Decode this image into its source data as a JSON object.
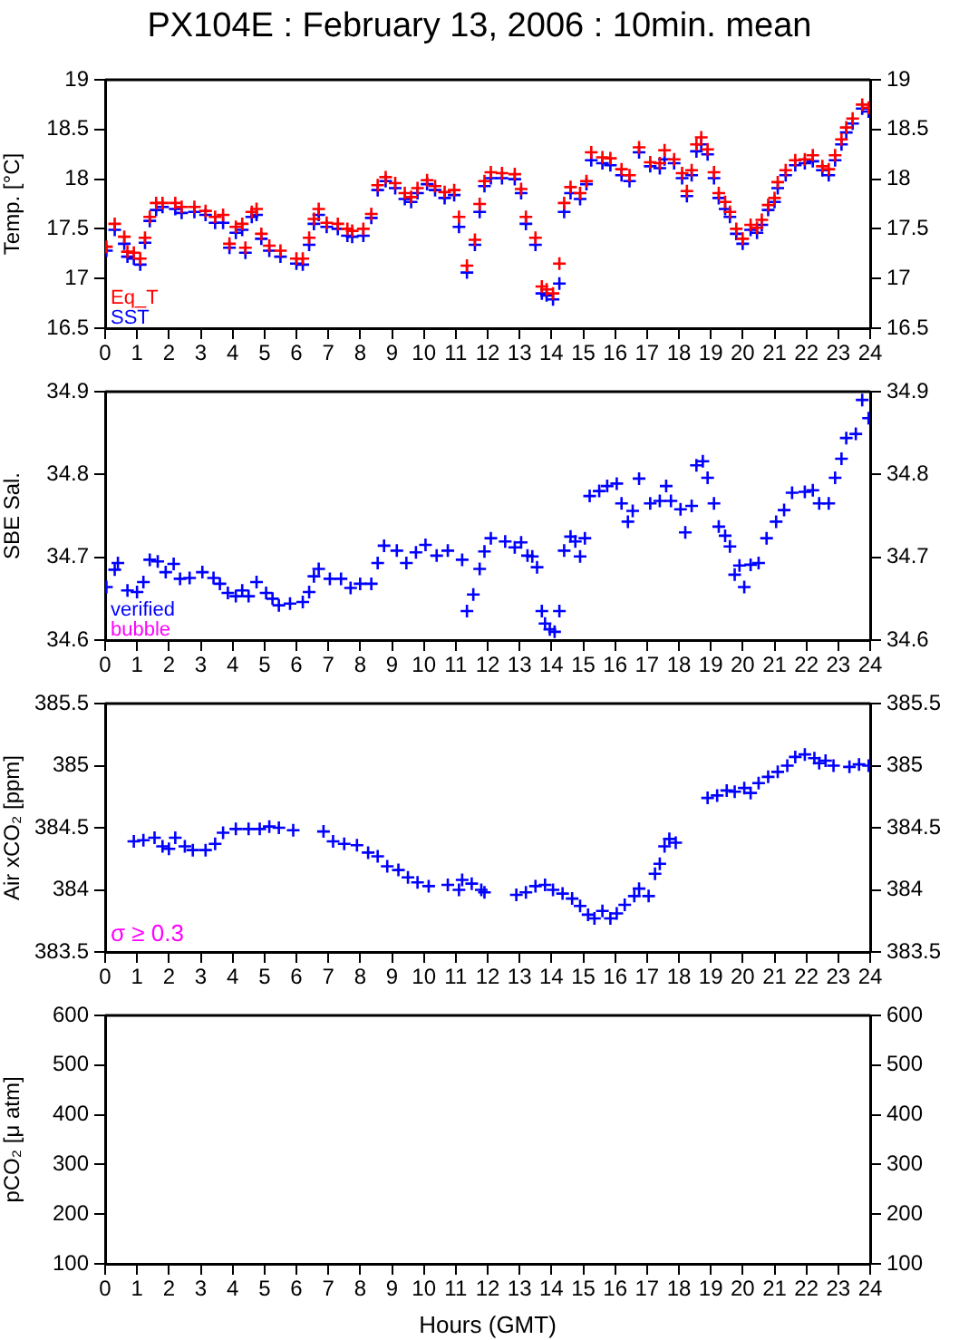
{
  "chart_data": [
    {
      "type": "scatter",
      "title": "PX104E : February 13, 2006 : 10min. mean",
      "ylabel": "Temp. [°C]",
      "marker": "cross",
      "legend": "bottom left",
      "grid": false,
      "xlim": [
        0,
        24
      ],
      "xticks": [
        0,
        1,
        2,
        3,
        4,
        5,
        6,
        7,
        8,
        9,
        10,
        11,
        12,
        13,
        14,
        15,
        16,
        17,
        18,
        19,
        20,
        21,
        22,
        23,
        24
      ],
      "ylim": [
        16.5,
        19
      ],
      "yticks": [
        16.5,
        17,
        17.5,
        18,
        18.5,
        19
      ],
      "y2lim": [
        16.5,
        19
      ],
      "y2ticks": [
        16.5,
        17,
        17.5,
        18,
        18.5,
        19
      ],
      "series": [
        {
          "name": "Eq_T",
          "color": "#ff0000",
          "x": [
            0.04,
            0.3,
            0.6,
            0.7,
            0.9,
            1.1,
            1.25,
            1.4,
            1.6,
            1.8,
            2.2,
            2.4,
            2.8,
            3.15,
            3.45,
            3.7,
            3.9,
            4.1,
            4.3,
            4.4,
            4.6,
            4.75,
            4.9,
            5.15,
            5.5,
            6.0,
            6.2,
            6.4,
            6.55,
            6.7,
            6.95,
            7.3,
            7.6,
            7.75,
            8.1,
            8.35,
            8.55,
            8.8,
            9.1,
            9.4,
            9.6,
            9.8,
            10.1,
            10.35,
            10.65,
            10.95,
            11.1,
            11.35,
            11.6,
            11.75,
            11.9,
            12.1,
            12.45,
            12.85,
            13.05,
            13.2,
            13.5,
            13.7,
            13.85,
            14.05,
            14.25,
            14.4,
            14.6,
            14.9,
            15.1,
            15.25,
            15.6,
            15.85,
            16.2,
            16.45,
            16.75,
            17.1,
            17.4,
            17.55,
            17.85,
            18.1,
            18.25,
            18.4,
            18.55,
            18.7,
            18.9,
            19.1,
            19.25,
            19.45,
            19.6,
            19.8,
            20.0,
            20.25,
            20.45,
            20.6,
            20.8,
            21.0,
            21.1,
            21.35,
            21.65,
            21.95,
            22.2,
            22.5,
            22.7,
            22.9,
            23.1,
            23.25,
            23.45,
            23.75,
            23.95
          ],
          "values": [
            17.32,
            17.55,
            17.42,
            17.27,
            17.26,
            17.2,
            17.41,
            17.62,
            17.76,
            17.76,
            17.76,
            17.72,
            17.72,
            17.68,
            17.62,
            17.64,
            17.35,
            17.52,
            17.55,
            17.31,
            17.67,
            17.7,
            17.45,
            17.33,
            17.28,
            17.2,
            17.2,
            17.41,
            17.6,
            17.7,
            17.56,
            17.55,
            17.5,
            17.48,
            17.5,
            17.65,
            17.94,
            18.02,
            17.96,
            17.86,
            17.82,
            17.91,
            17.99,
            17.93,
            17.87,
            17.89,
            17.62,
            17.13,
            17.39,
            17.75,
            17.98,
            18.07,
            18.06,
            18.05,
            17.9,
            17.62,
            17.41,
            16.92,
            16.89,
            16.85,
            17.15,
            17.76,
            17.92,
            17.86,
            17.98,
            18.27,
            18.22,
            18.21,
            18.1,
            18.04,
            18.32,
            18.17,
            18.16,
            18.29,
            18.2,
            18.06,
            17.88,
            18.09,
            18.35,
            18.42,
            18.3,
            18.07,
            17.86,
            17.77,
            17.67,
            17.5,
            17.4,
            17.54,
            17.51,
            17.59,
            17.74,
            17.81,
            17.97,
            18.09,
            18.19,
            18.2,
            18.24,
            18.13,
            18.1,
            18.24,
            18.4,
            18.52,
            18.61,
            18.75,
            18.72
          ]
        },
        {
          "name": "SST",
          "color": "#0000ff",
          "x": [
            0.04,
            0.3,
            0.6,
            0.7,
            0.9,
            1.1,
            1.25,
            1.4,
            1.6,
            1.8,
            2.2,
            2.4,
            2.8,
            3.15,
            3.45,
            3.7,
            3.9,
            4.1,
            4.3,
            4.4,
            4.6,
            4.75,
            4.9,
            5.15,
            5.5,
            6.0,
            6.2,
            6.4,
            6.55,
            6.7,
            6.95,
            7.3,
            7.6,
            7.75,
            8.1,
            8.35,
            8.55,
            8.8,
            9.1,
            9.4,
            9.6,
            9.8,
            10.1,
            10.35,
            10.65,
            10.95,
            11.1,
            11.35,
            11.6,
            11.75,
            11.9,
            12.1,
            12.45,
            12.85,
            13.05,
            13.2,
            13.5,
            13.7,
            13.85,
            14.05,
            14.25,
            14.4,
            14.6,
            14.9,
            15.1,
            15.25,
            15.6,
            15.85,
            16.2,
            16.45,
            16.75,
            17.1,
            17.4,
            17.55,
            17.85,
            18.1,
            18.25,
            18.4,
            18.55,
            18.7,
            18.9,
            19.1,
            19.25,
            19.45,
            19.6,
            19.8,
            20.0,
            20.25,
            20.45,
            20.6,
            20.8,
            21.0,
            21.1,
            21.35,
            21.65,
            21.95,
            22.2,
            22.5,
            22.7,
            22.9,
            23.1,
            23.25,
            23.45,
            23.75,
            23.95
          ],
          "values": [
            17.28,
            17.49,
            17.35,
            17.22,
            17.2,
            17.14,
            17.36,
            17.58,
            17.69,
            17.72,
            17.7,
            17.66,
            17.67,
            17.64,
            17.56,
            17.56,
            17.31,
            17.46,
            17.49,
            17.26,
            17.62,
            17.64,
            17.4,
            17.28,
            17.22,
            17.15,
            17.14,
            17.34,
            17.55,
            17.64,
            17.52,
            17.5,
            17.43,
            17.42,
            17.43,
            17.61,
            17.89,
            17.98,
            17.91,
            17.8,
            17.77,
            17.86,
            17.95,
            17.89,
            17.81,
            17.84,
            17.52,
            17.06,
            17.34,
            17.67,
            17.93,
            18.01,
            18.01,
            18.0,
            17.86,
            17.55,
            17.34,
            16.85,
            16.83,
            16.79,
            16.95,
            17.67,
            17.86,
            17.8,
            17.95,
            18.19,
            18.16,
            18.14,
            18.04,
            17.98,
            18.27,
            18.13,
            18.11,
            18.2,
            18.16,
            18.01,
            17.83,
            18.04,
            18.28,
            18.35,
            18.25,
            18.01,
            17.81,
            17.7,
            17.62,
            17.45,
            17.35,
            17.49,
            17.46,
            17.54,
            17.69,
            17.77,
            17.91,
            18.04,
            18.14,
            18.16,
            18.18,
            18.09,
            18.04,
            18.19,
            18.35,
            18.47,
            18.56,
            18.71,
            18.68
          ]
        }
      ]
    },
    {
      "type": "scatter",
      "ylabel": "SBE Sal.",
      "marker": "cross",
      "legend": "bottom left",
      "grid": false,
      "xlim": [
        0,
        24
      ],
      "xticks": [
        0,
        1,
        2,
        3,
        4,
        5,
        6,
        7,
        8,
        9,
        10,
        11,
        12,
        13,
        14,
        15,
        16,
        17,
        18,
        19,
        20,
        21,
        22,
        23,
        24
      ],
      "ylim": [
        34.6,
        34.9
      ],
      "yticks": [
        34.6,
        34.7,
        34.8,
        34.9
      ],
      "y2lim": [
        34.6,
        34.9
      ],
      "y2ticks": [
        34.6,
        34.7,
        34.8,
        34.9
      ],
      "series": [
        {
          "name": "verified",
          "color": "#0000ff",
          "x": [
            0.04,
            0.3,
            0.4,
            0.7,
            1.0,
            1.2,
            1.4,
            1.65,
            1.9,
            2.15,
            2.35,
            2.65,
            3.05,
            3.4,
            3.6,
            3.85,
            4.1,
            4.3,
            4.5,
            4.75,
            5.05,
            5.25,
            5.45,
            5.8,
            6.2,
            6.4,
            6.55,
            6.7,
            7.05,
            7.4,
            7.7,
            8.0,
            8.35,
            8.55,
            8.75,
            9.15,
            9.45,
            9.75,
            10.05,
            10.4,
            10.75,
            11.2,
            11.35,
            11.55,
            11.75,
            11.9,
            12.1,
            12.55,
            12.85,
            13.05,
            13.25,
            13.4,
            13.55,
            13.7,
            13.8,
            13.95,
            14.1,
            14.25,
            14.4,
            14.6,
            14.75,
            14.9,
            15.05,
            15.2,
            15.5,
            15.75,
            16.05,
            16.2,
            16.4,
            16.55,
            16.75,
            17.1,
            17.4,
            17.6,
            17.75,
            18.05,
            18.2,
            18.4,
            18.55,
            18.75,
            18.9,
            19.1,
            19.25,
            19.45,
            19.6,
            19.75,
            19.9,
            20.05,
            20.25,
            20.5,
            20.75,
            21.05,
            21.3,
            21.55,
            21.95,
            22.2,
            22.4,
            22.7,
            22.9,
            23.1,
            23.25,
            23.55,
            23.75,
            23.95
          ],
          "values": [
            34.664,
            34.685,
            34.693,
            34.66,
            34.658,
            34.67,
            34.697,
            34.695,
            34.682,
            34.692,
            34.674,
            34.675,
            34.682,
            34.675,
            34.668,
            34.657,
            34.653,
            34.66,
            34.653,
            34.67,
            34.657,
            34.65,
            34.642,
            34.644,
            34.646,
            34.658,
            34.677,
            34.686,
            34.674,
            34.674,
            34.663,
            34.668,
            34.668,
            34.693,
            34.714,
            34.708,
            34.693,
            34.706,
            34.715,
            34.702,
            34.708,
            34.697,
            34.635,
            34.655,
            34.686,
            34.707,
            34.723,
            34.719,
            34.712,
            34.718,
            34.702,
            34.701,
            34.688,
            34.635,
            34.62,
            34.613,
            34.61,
            34.635,
            34.708,
            34.725,
            34.719,
            34.701,
            34.723,
            34.774,
            34.78,
            34.786,
            34.789,
            34.765,
            34.743,
            34.756,
            34.795,
            34.765,
            34.768,
            34.786,
            34.768,
            34.758,
            34.73,
            34.762,
            34.811,
            34.816,
            34.796,
            34.765,
            34.737,
            34.726,
            34.713,
            34.679,
            34.69,
            34.664,
            34.691,
            34.693,
            34.723,
            34.743,
            34.757,
            34.778,
            34.779,
            34.781,
            34.765,
            34.765,
            34.796,
            34.819,
            34.844,
            34.849,
            34.89,
            34.868
          ]
        },
        {
          "name": "bubble",
          "color": "#ff00ff"
        }
      ]
    },
    {
      "type": "scatter",
      "ylabel": "Air xCO₂ [ppm]",
      "marker": "cross",
      "annotations": [
        "σ ≥ 0.3"
      ],
      "grid": false,
      "xlim": [
        0,
        24
      ],
      "xticks": [
        0,
        1,
        2,
        3,
        4,
        5,
        6,
        7,
        8,
        9,
        10,
        11,
        12,
        13,
        14,
        15,
        16,
        17,
        18,
        19,
        20,
        21,
        22,
        23,
        24
      ],
      "ylim": [
        383.5,
        385.5
      ],
      "yticks": [
        383.5,
        384,
        384.5,
        385,
        385.5
      ],
      "y2lim": [
        383.5,
        385.5
      ],
      "y2ticks": [
        383.5,
        384,
        384.5,
        385,
        385.5
      ],
      "series": [
        {
          "color": "#0000ff",
          "x": [
            0.9,
            1.2,
            1.55,
            1.8,
            2.0,
            2.2,
            2.5,
            2.75,
            3.15,
            3.45,
            3.7,
            4.1,
            4.5,
            4.85,
            5.15,
            5.45,
            5.9,
            6.85,
            7.15,
            7.5,
            7.9,
            8.25,
            8.55,
            8.85,
            9.2,
            9.5,
            9.8,
            10.15,
            10.75,
            11.1,
            11.2,
            11.5,
            11.8,
            11.9,
            12.9,
            13.2,
            13.5,
            13.8,
            14.05,
            14.35,
            14.65,
            14.9,
            15.15,
            15.35,
            15.6,
            15.85,
            16.05,
            16.3,
            16.6,
            16.75,
            17.05,
            17.25,
            17.4,
            17.55,
            17.7,
            17.9,
            18.9,
            19.2,
            19.5,
            19.75,
            20.05,
            20.25,
            20.5,
            20.8,
            21.1,
            21.4,
            21.65,
            21.95,
            22.25,
            22.4,
            22.6,
            22.85,
            23.35,
            23.65,
            23.95
          ],
          "values": [
            384.39,
            384.4,
            384.42,
            384.35,
            384.33,
            384.42,
            384.35,
            384.32,
            384.32,
            384.37,
            384.46,
            384.49,
            384.49,
            384.49,
            384.51,
            384.5,
            384.48,
            384.47,
            384.39,
            384.37,
            384.36,
            384.3,
            384.27,
            384.19,
            384.16,
            384.1,
            384.06,
            384.03,
            384.04,
            384.0,
            384.08,
            384.05,
            384.0,
            383.98,
            383.96,
            383.98,
            384.03,
            384.04,
            384.0,
            383.97,
            383.93,
            383.87,
            383.8,
            383.77,
            383.83,
            383.77,
            383.81,
            383.88,
            383.95,
            384.01,
            383.95,
            384.13,
            384.21,
            384.35,
            384.41,
            384.38,
            384.74,
            384.76,
            384.8,
            384.79,
            384.82,
            384.78,
            384.86,
            384.91,
            384.95,
            385.0,
            385.07,
            385.09,
            385.06,
            385.02,
            385.04,
            385.0,
            384.99,
            385.01,
            385.0
          ]
        }
      ]
    },
    {
      "type": "scatter",
      "ylabel": "pCO₂ [μ atm]",
      "xlabel": "Hours (GMT)",
      "grid": false,
      "xlim": [
        0,
        24
      ],
      "xticks": [
        0,
        1,
        2,
        3,
        4,
        5,
        6,
        7,
        8,
        9,
        10,
        11,
        12,
        13,
        14,
        15,
        16,
        17,
        18,
        19,
        20,
        21,
        22,
        23,
        24
      ],
      "ylim": [
        100,
        600
      ],
      "yticks": [
        100,
        200,
        300,
        400,
        500,
        600
      ],
      "y2lim": [
        100,
        600
      ],
      "y2ticks": [
        100,
        200,
        300,
        400,
        500,
        600
      ]
    }
  ]
}
